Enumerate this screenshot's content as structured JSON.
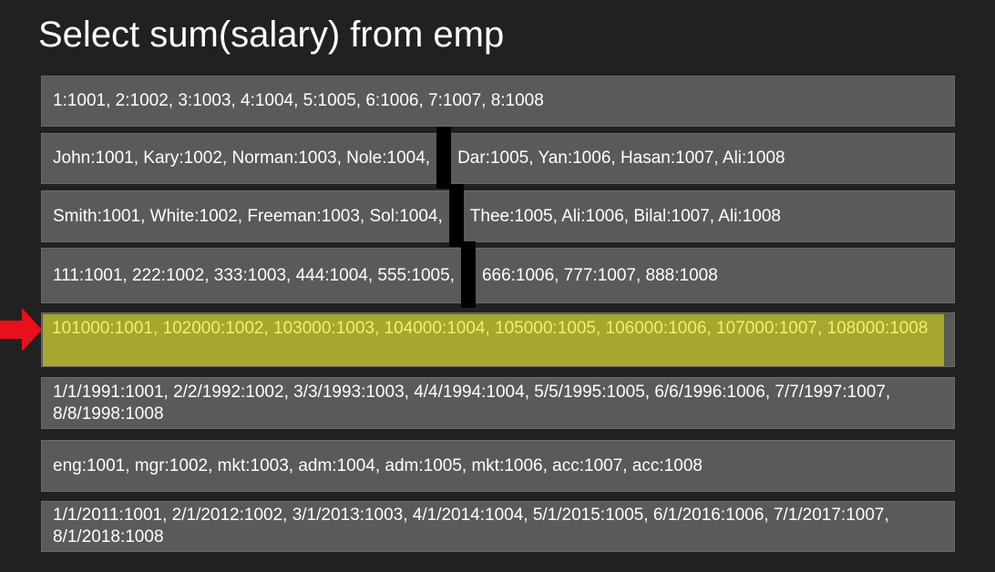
{
  "title": "Select sum(salary) from emp",
  "rows": [
    [
      "1:1001, 2:1002, 3:1003, 4:1004, 5:1005, 6:1006, 7:1007, 8:1008"
    ],
    [
      "John:1001, Kary:1002, Norman:1003, Nole:1004,",
      "Dar:1005, Yan:1006, Hasan:1007, Ali:1008"
    ],
    [
      "Smith:1001, White:1002, Freeman:1003, Sol:1004,",
      "Thee:1005, Ali:1006, Bilal:1007, Ali:1008"
    ],
    [
      "111:1001, 222:1002, 333:1003, 444:1004, 555:1005,",
      "666:1006, 777:1007, 888:1008"
    ],
    [
      "101000:1001, 102000:1002, 103000:1003, 104000:1004, 105000:1005, 106000:1006, 107000:1007, 108000:1008"
    ],
    [
      "1/1/1991:1001, 2/2/1992:1002, 3/3/1993:1003, 4/4/1994:1004, 5/5/1995:1005, 6/6/1996:1006, 7/7/1997:1007, 8/8/1998:1008"
    ],
    [
      "eng:1001, mgr:1002, mkt:1003, adm:1004, adm:1005, mkt:1006, acc:1007, acc:1008"
    ],
    [
      "1/1/2011:1001, 2/1/2012:1002, 3/1/2013:1003, 4/1/2014:1004, 5/1/2015:1005, 6/1/2016:1006, 7/1/2017:1007, 8/1/2018:1008"
    ]
  ]
}
